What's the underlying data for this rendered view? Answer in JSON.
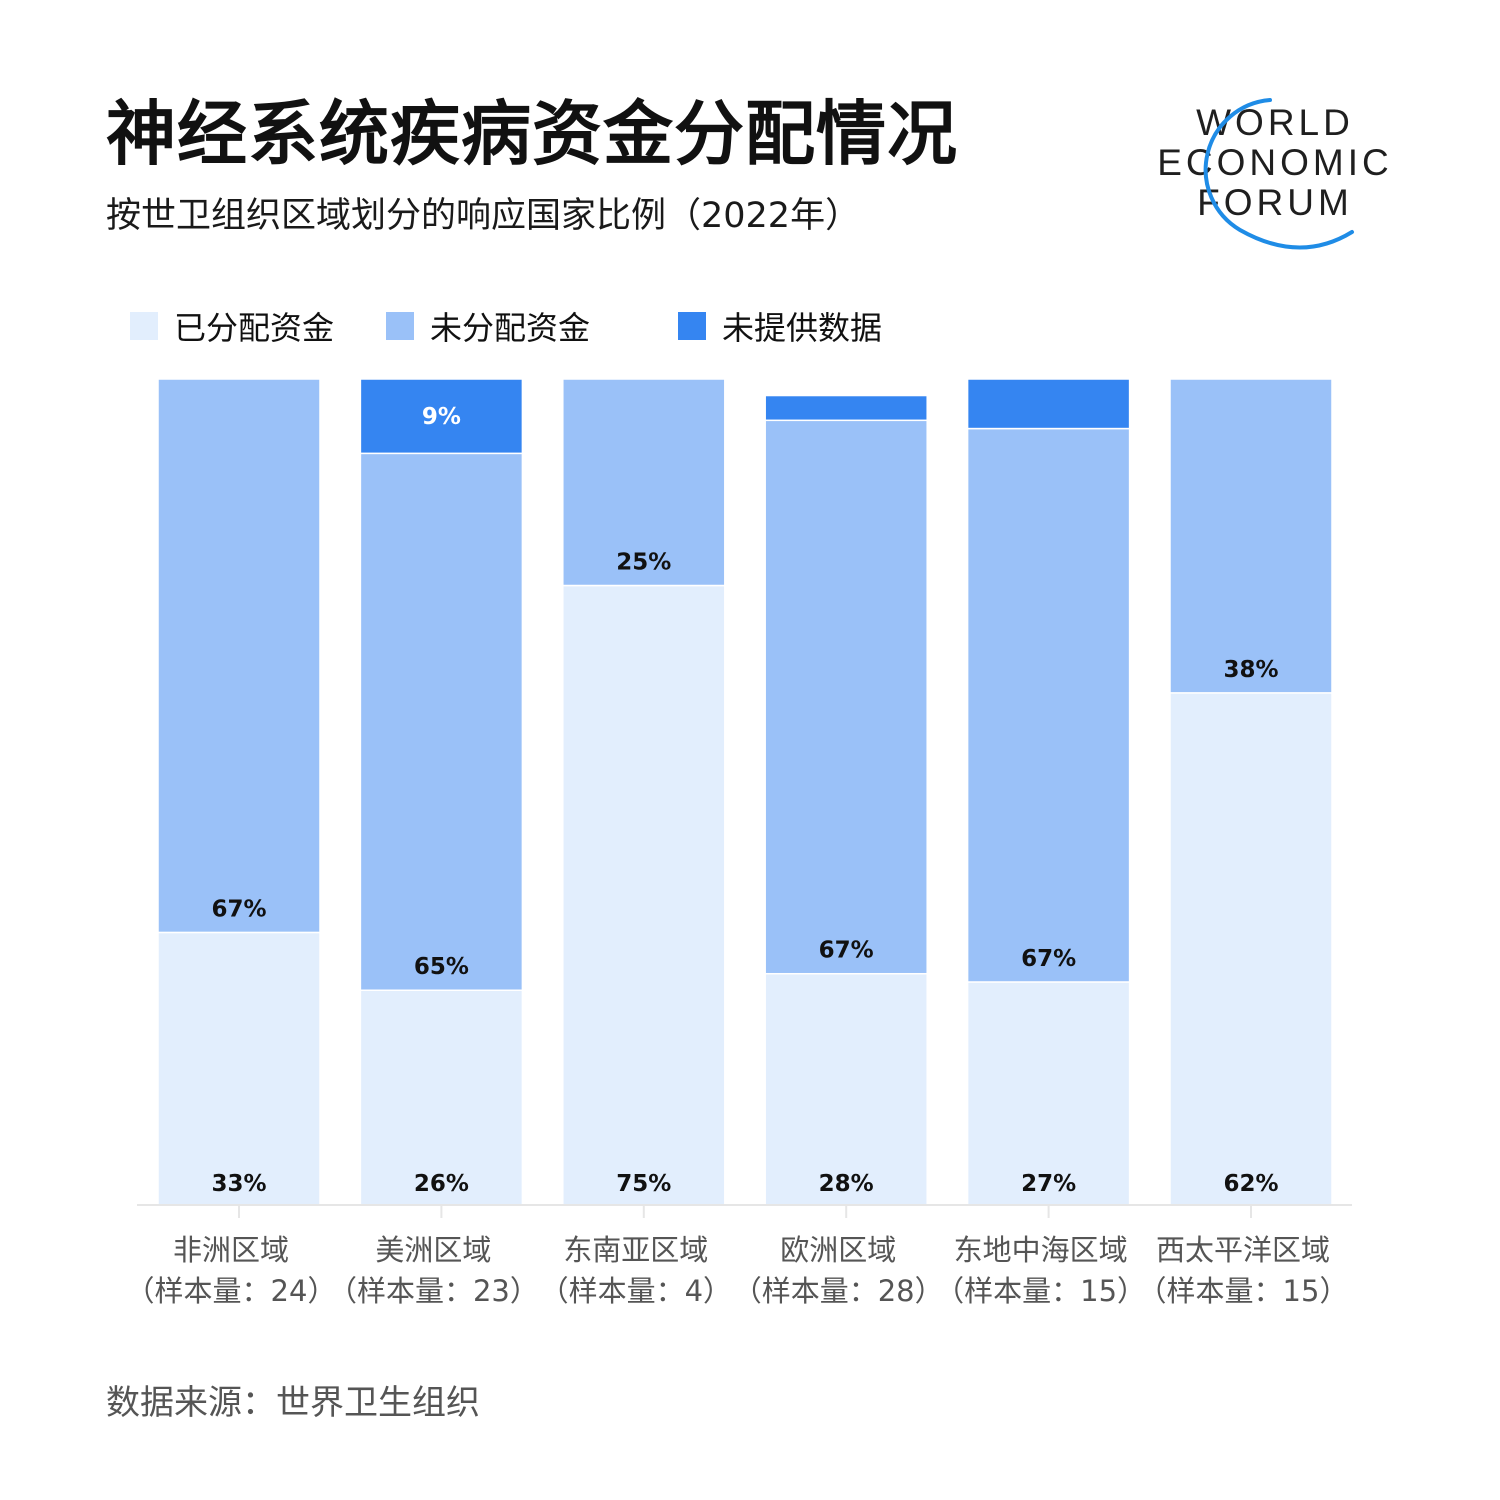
{
  "header": {
    "title": "神经系统疾病资金分配情况",
    "subtitle": "按世卫组织区域划分的响应国家比例（2022年）"
  },
  "logo": {
    "lines": [
      "WORLD",
      "ECONOMIC",
      "FORUM"
    ],
    "arc_color": "#1f8ce6"
  },
  "colors": {
    "allocated": "#e2eefd",
    "unallocated": "#9ac1f8",
    "no_data": "#3585f1",
    "axis": "#e6e6e6"
  },
  "legend": [
    {
      "label": "已分配资金",
      "key": "allocated"
    },
    {
      "label": "未分配资金",
      "key": "unallocated"
    },
    {
      "label": "未提供数据",
      "key": "no_data"
    }
  ],
  "chart_data": {
    "type": "bar",
    "stacked": true,
    "ylim": [
      0,
      100
    ],
    "categories": [
      {
        "name": "非洲区域",
        "sample": "（样本量：24）"
      },
      {
        "name": "美洲区域",
        "sample": "（样本量：23）"
      },
      {
        "name": "东南亚区域",
        "sample": "（样本量：4）"
      },
      {
        "name": "欧洲区域",
        "sample": "（样本量：28）"
      },
      {
        "name": "东地中海区域",
        "sample": "（样本量：15）"
      },
      {
        "name": "西太平洋区域",
        "sample": "（样本量：15）"
      }
    ],
    "series": [
      {
        "name": "已分配资金",
        "key": "allocated",
        "values": [
          33,
          26,
          75,
          28,
          27,
          62
        ],
        "labels": [
          "33%",
          "26%",
          "75%",
          "28%",
          "27%",
          "62%"
        ]
      },
      {
        "name": "未分配资金",
        "key": "unallocated",
        "values": [
          67,
          65,
          25,
          67,
          67,
          38
        ],
        "labels": [
          "67%",
          "65%",
          "25%",
          "67%",
          "67%",
          "38%"
        ]
      },
      {
        "name": "未提供数据",
        "key": "no_data",
        "values": [
          0,
          9,
          0,
          3,
          6,
          0
        ],
        "labels": [
          "",
          "9%",
          "",
          "",
          "",
          ""
        ]
      }
    ]
  },
  "footer": {
    "source": "数据来源：世界卫生组织"
  }
}
